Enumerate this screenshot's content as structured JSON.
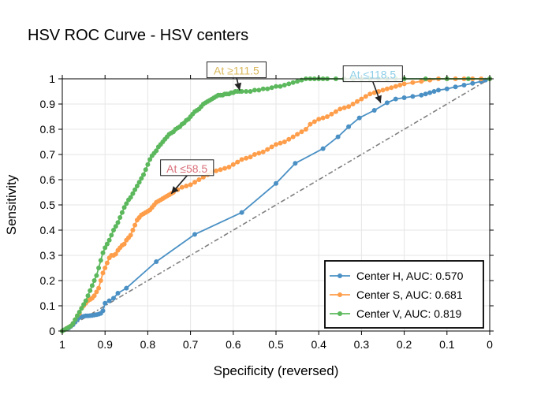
{
  "chart_data": {
    "type": "line",
    "title": "HSV ROC Curve - HSV centers",
    "xlabel": "Specificity (reversed)",
    "ylabel": "Sensitivity",
    "xlim": [
      1,
      0
    ],
    "ylim": [
      0,
      1
    ],
    "x_reversed": true,
    "grid": true,
    "legend_position": "bottom-right",
    "x_ticks": [
      "1",
      "0.9",
      "0.8",
      "0.7",
      "0.6",
      "0.5",
      "0.4",
      "0.3",
      "0.2",
      "0.1",
      "0"
    ],
    "y_ticks": [
      "0",
      "0.1",
      "0.2",
      "0.3",
      "0.4",
      "0.5",
      "0.6",
      "0.7",
      "0.8",
      "0.9",
      "1"
    ],
    "diagonal": {
      "x": [
        1,
        0
      ],
      "y": [
        0,
        1
      ],
      "color": "#7f7f7f"
    },
    "series": [
      {
        "name": "Center H, AUC: 0.570",
        "color": "#4a90c4",
        "x": [
          1.0,
          0.995,
          0.99,
          0.985,
          0.98,
          0.975,
          0.97,
          0.965,
          0.96,
          0.955,
          0.95,
          0.945,
          0.94,
          0.935,
          0.93,
          0.925,
          0.92,
          0.915,
          0.91,
          0.905,
          0.9,
          0.89,
          0.88,
          0.87,
          0.85,
          0.78,
          0.69,
          0.58,
          0.5,
          0.455,
          0.39,
          0.355,
          0.33,
          0.305,
          0.27,
          0.24,
          0.22,
          0.2,
          0.18,
          0.16,
          0.15,
          0.14,
          0.13,
          0.12,
          0.1,
          0.08,
          0.06,
          0.04,
          0.02,
          0.01,
          0.0
        ],
        "y": [
          0.0,
          0.005,
          0.008,
          0.012,
          0.018,
          0.025,
          0.035,
          0.045,
          0.053,
          0.057,
          0.058,
          0.06,
          0.06,
          0.061,
          0.062,
          0.063,
          0.065,
          0.067,
          0.07,
          0.08,
          0.11,
          0.12,
          0.13,
          0.15,
          0.17,
          0.275,
          0.383,
          0.47,
          0.585,
          0.665,
          0.723,
          0.77,
          0.81,
          0.845,
          0.875,
          0.905,
          0.92,
          0.925,
          0.93,
          0.935,
          0.94,
          0.945,
          0.95,
          0.955,
          0.96,
          0.968,
          0.975,
          0.982,
          0.99,
          0.995,
          1.0
        ],
        "annotation": {
          "text": "At ≤118.5",
          "x": 0.255,
          "y": 0.895,
          "color": "#8ecfe8"
        }
      },
      {
        "name": "Center S, AUC: 0.681",
        "color": "#ff9e4a",
        "x": [
          1.0,
          0.99,
          0.985,
          0.98,
          0.975,
          0.97,
          0.965,
          0.96,
          0.955,
          0.95,
          0.945,
          0.94,
          0.935,
          0.93,
          0.925,
          0.92,
          0.915,
          0.91,
          0.905,
          0.9,
          0.895,
          0.89,
          0.885,
          0.88,
          0.875,
          0.87,
          0.865,
          0.86,
          0.855,
          0.85,
          0.845,
          0.84,
          0.835,
          0.83,
          0.825,
          0.82,
          0.815,
          0.81,
          0.805,
          0.8,
          0.795,
          0.79,
          0.785,
          0.78,
          0.775,
          0.77,
          0.765,
          0.76,
          0.755,
          0.75,
          0.745,
          0.74,
          0.73,
          0.72,
          0.71,
          0.7,
          0.69,
          0.68,
          0.67,
          0.66,
          0.65,
          0.64,
          0.63,
          0.62,
          0.61,
          0.6,
          0.59,
          0.58,
          0.57,
          0.56,
          0.55,
          0.54,
          0.53,
          0.52,
          0.51,
          0.5,
          0.49,
          0.48,
          0.47,
          0.46,
          0.45,
          0.44,
          0.43,
          0.42,
          0.41,
          0.4,
          0.39,
          0.38,
          0.37,
          0.36,
          0.35,
          0.34,
          0.33,
          0.32,
          0.31,
          0.3,
          0.29,
          0.28,
          0.27,
          0.26,
          0.25,
          0.24,
          0.23,
          0.22,
          0.21,
          0.2,
          0.18,
          0.16,
          0.14,
          0.12,
          0.1,
          0.08,
          0.06,
          0.04,
          0.02,
          0.0
        ],
        "y": [
          0.0,
          0.01,
          0.015,
          0.02,
          0.03,
          0.045,
          0.06,
          0.07,
          0.09,
          0.1,
          0.11,
          0.12,
          0.125,
          0.13,
          0.14,
          0.155,
          0.17,
          0.2,
          0.23,
          0.25,
          0.27,
          0.29,
          0.3,
          0.3,
          0.305,
          0.32,
          0.33,
          0.34,
          0.345,
          0.36,
          0.37,
          0.38,
          0.4,
          0.42,
          0.44,
          0.45,
          0.46,
          0.465,
          0.47,
          0.475,
          0.48,
          0.49,
          0.5,
          0.51,
          0.515,
          0.52,
          0.525,
          0.53,
          0.535,
          0.54,
          0.545,
          0.55,
          0.56,
          0.57,
          0.575,
          0.58,
          0.59,
          0.6,
          0.61,
          0.62,
          0.63,
          0.635,
          0.64,
          0.645,
          0.65,
          0.66,
          0.67,
          0.68,
          0.685,
          0.69,
          0.7,
          0.705,
          0.71,
          0.72,
          0.73,
          0.74,
          0.745,
          0.75,
          0.76,
          0.77,
          0.78,
          0.79,
          0.8,
          0.82,
          0.83,
          0.84,
          0.845,
          0.85,
          0.86,
          0.87,
          0.88,
          0.885,
          0.89,
          0.9,
          0.91,
          0.92,
          0.93,
          0.94,
          0.945,
          0.95,
          0.955,
          0.96,
          0.965,
          0.97,
          0.975,
          0.98,
          0.985,
          0.99,
          0.995,
          1.0,
          1.0,
          1.0,
          1.0,
          1.0,
          1.0,
          1.0
        ],
        "annotation": {
          "text": "At ≤58.5",
          "x": 0.745,
          "y": 0.535,
          "color": "#d9707a"
        }
      },
      {
        "name": "Center V, AUC: 0.819",
        "color": "#5cb85c",
        "x": [
          1.0,
          0.995,
          0.99,
          0.985,
          0.98,
          0.975,
          0.97,
          0.965,
          0.96,
          0.955,
          0.95,
          0.945,
          0.94,
          0.935,
          0.93,
          0.925,
          0.92,
          0.915,
          0.91,
          0.905,
          0.9,
          0.895,
          0.89,
          0.885,
          0.88,
          0.875,
          0.87,
          0.865,
          0.86,
          0.855,
          0.85,
          0.845,
          0.84,
          0.835,
          0.83,
          0.825,
          0.82,
          0.815,
          0.81,
          0.805,
          0.8,
          0.795,
          0.79,
          0.785,
          0.78,
          0.775,
          0.77,
          0.765,
          0.76,
          0.755,
          0.75,
          0.745,
          0.74,
          0.735,
          0.73,
          0.725,
          0.72,
          0.715,
          0.71,
          0.705,
          0.7,
          0.695,
          0.69,
          0.685,
          0.68,
          0.675,
          0.67,
          0.665,
          0.66,
          0.655,
          0.65,
          0.645,
          0.64,
          0.635,
          0.63,
          0.625,
          0.62,
          0.615,
          0.61,
          0.605,
          0.6,
          0.595,
          0.59,
          0.585,
          0.58,
          0.57,
          0.56,
          0.55,
          0.54,
          0.53,
          0.52,
          0.51,
          0.5,
          0.49,
          0.48,
          0.47,
          0.46,
          0.45,
          0.44,
          0.43,
          0.42,
          0.41,
          0.4,
          0.39,
          0.38,
          0.36,
          0.34,
          0.32,
          0.3,
          0.28,
          0.26,
          0.24,
          0.22,
          0.2,
          0.15,
          0.1,
          0.05,
          0.0
        ],
        "y": [
          0.0,
          0.005,
          0.01,
          0.015,
          0.02,
          0.03,
          0.045,
          0.06,
          0.075,
          0.09,
          0.105,
          0.12,
          0.14,
          0.16,
          0.18,
          0.2,
          0.22,
          0.25,
          0.28,
          0.31,
          0.33,
          0.345,
          0.36,
          0.38,
          0.4,
          0.415,
          0.43,
          0.45,
          0.47,
          0.49,
          0.505,
          0.52,
          0.53,
          0.545,
          0.56,
          0.575,
          0.59,
          0.605,
          0.62,
          0.64,
          0.66,
          0.68,
          0.695,
          0.705,
          0.715,
          0.73,
          0.74,
          0.75,
          0.76,
          0.77,
          0.78,
          0.785,
          0.79,
          0.8,
          0.805,
          0.81,
          0.82,
          0.825,
          0.835,
          0.84,
          0.85,
          0.86,
          0.87,
          0.875,
          0.88,
          0.89,
          0.9,
          0.905,
          0.91,
          0.915,
          0.92,
          0.925,
          0.93,
          0.935,
          0.935,
          0.935,
          0.94,
          0.94,
          0.94,
          0.945,
          0.945,
          0.95,
          0.95,
          0.95,
          0.95,
          0.95,
          0.95,
          0.955,
          0.955,
          0.96,
          0.96,
          0.965,
          0.97,
          0.97,
          0.975,
          0.98,
          0.985,
          0.99,
          0.995,
          1.0,
          1.0,
          1.0,
          1.0,
          1.0,
          1.0,
          1.0,
          1.0,
          1.0,
          1.0,
          1.0,
          1.0,
          1.0,
          1.0,
          1.0,
          1.0,
          1.0,
          1.0,
          1.0
        ],
        "annotation": {
          "text": "At ≥111.5",
          "x": 0.585,
          "y": 0.945,
          "color": "#d9b85c"
        }
      }
    ]
  }
}
